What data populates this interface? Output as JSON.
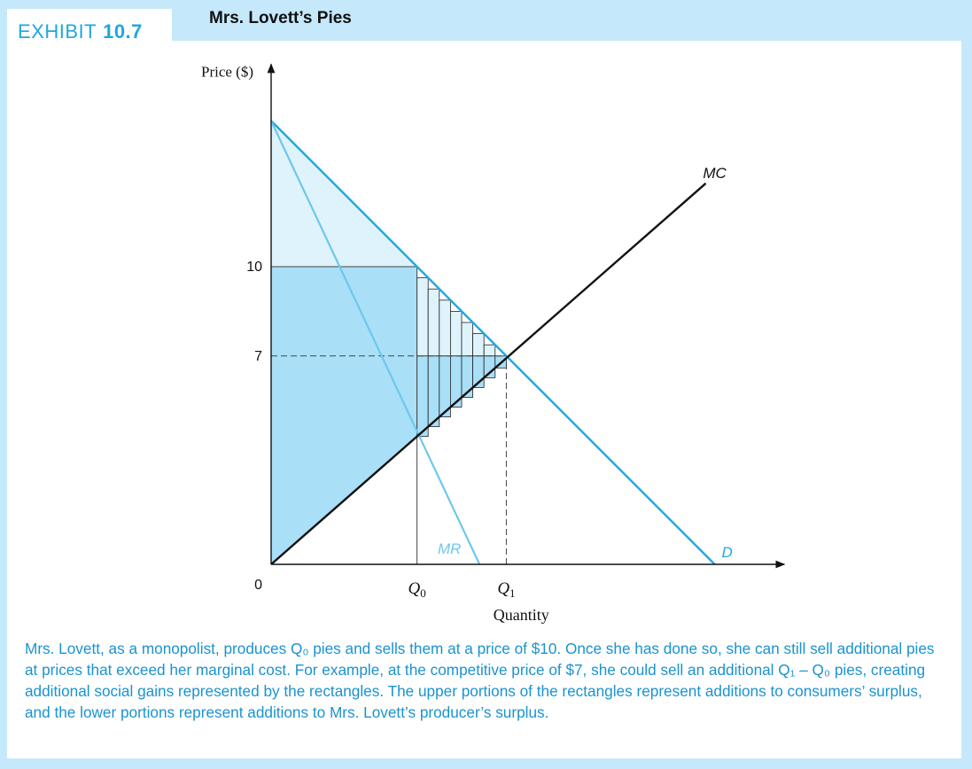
{
  "header": {
    "exhibit_label": "EXHIBIT",
    "exhibit_number": "10.7",
    "title": "Mrs. Lovett’s Pies"
  },
  "chart_data": {
    "type": "line",
    "title": "Mrs. Lovett’s Pies",
    "xlabel": "Quantity",
    "ylabel": "Price ($)",
    "y_ticks": [
      {
        "value": 10,
        "label": "10"
      },
      {
        "value": 7,
        "label": "7"
      }
    ],
    "x_ticks": [
      {
        "value": 0,
        "label": "0"
      },
      {
        "value": 4.9,
        "label": "Q",
        "sub": "0"
      },
      {
        "value": 7.9,
        "label": "Q",
        "sub": "1"
      }
    ],
    "xlim": [
      0,
      17
    ],
    "ylim": [
      0,
      16.8
    ],
    "grid": false,
    "series": [
      {
        "name": "D",
        "points": [
          [
            0,
            14.9
          ],
          [
            14.9,
            0
          ]
        ],
        "color": "#1ea7e1"
      },
      {
        "name": "MR",
        "points": [
          [
            0,
            14.9
          ],
          [
            7,
            0
          ]
        ],
        "color": "#6fc7ec"
      },
      {
        "name": "MC",
        "points": [
          [
            0,
            0
          ],
          [
            14.6,
            12.8
          ]
        ],
        "color": "#111111"
      }
    ],
    "regions": {
      "consumer_surplus": [
        [
          0,
          14.9
        ],
        [
          4.9,
          10
        ],
        [
          0,
          10
        ]
      ],
      "monopoly_revenue_above_cost": [
        [
          0,
          10
        ],
        [
          4.9,
          10
        ],
        [
          4.9,
          4.3
        ],
        [
          0,
          0
        ]
      ],
      "additional_gain_rectangles": 8
    },
    "guides": [
      {
        "from": [
          0,
          10
        ],
        "to": [
          4.9,
          10
        ],
        "style": "solid"
      },
      {
        "from": [
          4.9,
          0
        ],
        "to": [
          4.9,
          10
        ],
        "style": "solid"
      },
      {
        "from": [
          0,
          7
        ],
        "to": [
          7.9,
          7
        ],
        "style": "dashed"
      },
      {
        "from": [
          7.9,
          0
        ],
        "to": [
          7.9,
          7
        ],
        "style": "dashed"
      }
    ]
  },
  "caption": "Mrs. Lovett, as a monopolist, produces Q₀ pies and sells them at a price of $10. Once she has done so, she can still sell additional pies at prices that exceed her marginal cost. For example, at the competitive price of $7, she could sell an additional Q₁ – Q₀ pies, creating additional social gains represented by the rectangles. The upper portions of the rectangles represent additions to consumers’ surplus, and the lower portions represent additions to Mrs. Lovett’s producer’s surplus.",
  "colors": {
    "background": "#c5e9fb",
    "accent": "#1ea7e1",
    "light_fill": "#dff3fd",
    "medium_fill": "#a9dff7",
    "mr_line": "#6fc7ec"
  }
}
